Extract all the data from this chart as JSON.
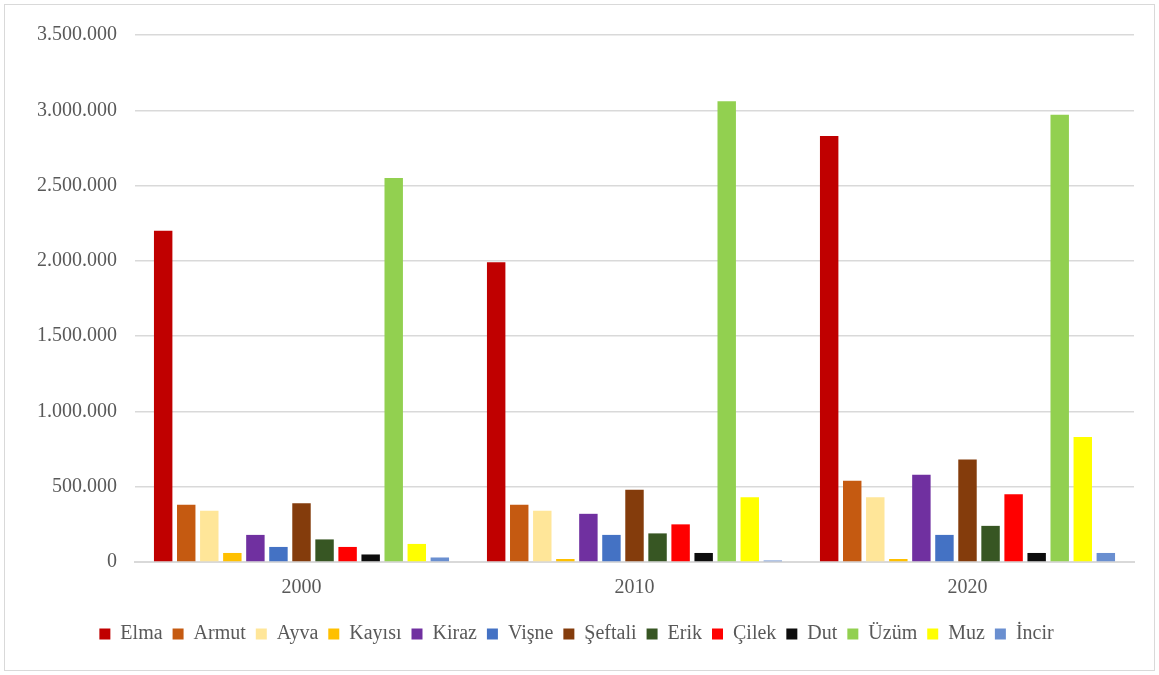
{
  "chart_data": {
    "type": "bar",
    "categories": [
      "2000",
      "2010",
      "2020"
    ],
    "series": [
      {
        "name": "Elma",
        "color": "#c00000",
        "values": [
          2200000,
          1990000,
          2830000
        ]
      },
      {
        "name": "Armut",
        "color": "#c55a11",
        "values": [
          380000,
          380000,
          540000
        ]
      },
      {
        "name": "Ayva",
        "color": "#ffe699",
        "values": [
          340000,
          340000,
          430000
        ]
      },
      {
        "name": "Kayısı",
        "color": "#ffc000",
        "values": [
          60000,
          20000,
          20000
        ]
      },
      {
        "name": "Kiraz",
        "color": "#7030a0",
        "values": [
          180000,
          320000,
          580000
        ]
      },
      {
        "name": "Vişne",
        "color": "#4472c4",
        "values": [
          100000,
          180000,
          180000
        ]
      },
      {
        "name": "Şeftali",
        "color": "#843c0c",
        "values": [
          390000,
          480000,
          680000
        ]
      },
      {
        "name": "Erik",
        "color": "#375623",
        "values": [
          150000,
          190000,
          240000
        ]
      },
      {
        "name": "Çilek",
        "color": "#ff0000",
        "values": [
          100000,
          250000,
          450000
        ]
      },
      {
        "name": "Dut",
        "color": "#0d0d0d",
        "values": [
          50000,
          60000,
          60000
        ]
      },
      {
        "name": "Üzüm",
        "color": "#92d050",
        "values": [
          2550000,
          3060000,
          2970000
        ]
      },
      {
        "name": "Muz",
        "color": "#ffff00",
        "values": [
          120000,
          430000,
          830000
        ]
      },
      {
        "name": "İncir",
        "color": "#6a8fd0",
        "values": [
          30000,
          10000,
          60000
        ]
      }
    ],
    "ylim": [
      0,
      3500000
    ],
    "yticks": [
      {
        "value": 0,
        "label": "0"
      },
      {
        "value": 500000,
        "label": "500.000"
      },
      {
        "value": 1000000,
        "label": "1.000.000"
      },
      {
        "value": 1500000,
        "label": "1.500.000"
      },
      {
        "value": 2000000,
        "label": "2.000.000"
      },
      {
        "value": 2500000,
        "label": "2.500.000"
      },
      {
        "value": 3000000,
        "label": "3.000.000"
      },
      {
        "value": 3500000,
        "label": "3.500.000"
      }
    ],
    "grid": "y",
    "legend": "bottom"
  }
}
